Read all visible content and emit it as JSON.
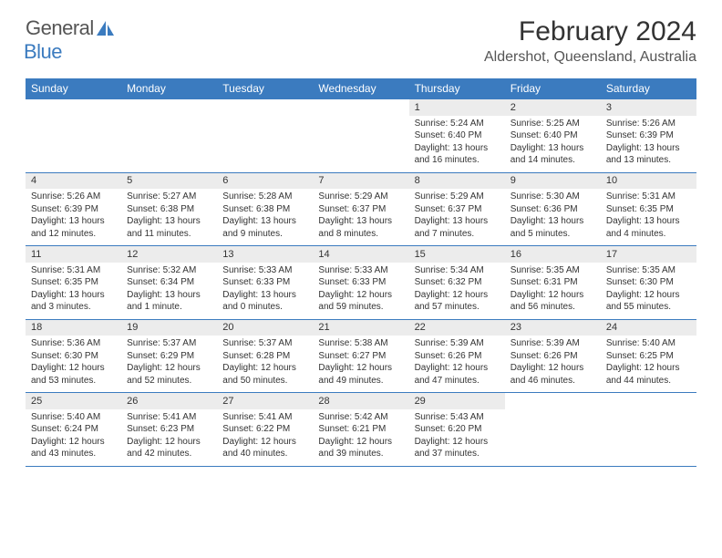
{
  "logo": {
    "general": "General",
    "blue": "Blue",
    "icon_color": "#3b7bbf"
  },
  "header": {
    "title": "February 2024",
    "location": "Aldershot, Queensland, Australia"
  },
  "colors": {
    "header_bg": "#3b7bbf",
    "header_text": "#ffffff",
    "daynum_bg": "#ececec",
    "border": "#3b7bbf",
    "body_text": "#333333"
  },
  "day_names": [
    "Sunday",
    "Monday",
    "Tuesday",
    "Wednesday",
    "Thursday",
    "Friday",
    "Saturday"
  ],
  "weeks": [
    [
      null,
      null,
      null,
      null,
      {
        "n": "1",
        "sr": "Sunrise: 5:24 AM",
        "ss": "Sunset: 6:40 PM",
        "dl": "Daylight: 13 hours and 16 minutes."
      },
      {
        "n": "2",
        "sr": "Sunrise: 5:25 AM",
        "ss": "Sunset: 6:40 PM",
        "dl": "Daylight: 13 hours and 14 minutes."
      },
      {
        "n": "3",
        "sr": "Sunrise: 5:26 AM",
        "ss": "Sunset: 6:39 PM",
        "dl": "Daylight: 13 hours and 13 minutes."
      }
    ],
    [
      {
        "n": "4",
        "sr": "Sunrise: 5:26 AM",
        "ss": "Sunset: 6:39 PM",
        "dl": "Daylight: 13 hours and 12 minutes."
      },
      {
        "n": "5",
        "sr": "Sunrise: 5:27 AM",
        "ss": "Sunset: 6:38 PM",
        "dl": "Daylight: 13 hours and 11 minutes."
      },
      {
        "n": "6",
        "sr": "Sunrise: 5:28 AM",
        "ss": "Sunset: 6:38 PM",
        "dl": "Daylight: 13 hours and 9 minutes."
      },
      {
        "n": "7",
        "sr": "Sunrise: 5:29 AM",
        "ss": "Sunset: 6:37 PM",
        "dl": "Daylight: 13 hours and 8 minutes."
      },
      {
        "n": "8",
        "sr": "Sunrise: 5:29 AM",
        "ss": "Sunset: 6:37 PM",
        "dl": "Daylight: 13 hours and 7 minutes."
      },
      {
        "n": "9",
        "sr": "Sunrise: 5:30 AM",
        "ss": "Sunset: 6:36 PM",
        "dl": "Daylight: 13 hours and 5 minutes."
      },
      {
        "n": "10",
        "sr": "Sunrise: 5:31 AM",
        "ss": "Sunset: 6:35 PM",
        "dl": "Daylight: 13 hours and 4 minutes."
      }
    ],
    [
      {
        "n": "11",
        "sr": "Sunrise: 5:31 AM",
        "ss": "Sunset: 6:35 PM",
        "dl": "Daylight: 13 hours and 3 minutes."
      },
      {
        "n": "12",
        "sr": "Sunrise: 5:32 AM",
        "ss": "Sunset: 6:34 PM",
        "dl": "Daylight: 13 hours and 1 minute."
      },
      {
        "n": "13",
        "sr": "Sunrise: 5:33 AM",
        "ss": "Sunset: 6:33 PM",
        "dl": "Daylight: 13 hours and 0 minutes."
      },
      {
        "n": "14",
        "sr": "Sunrise: 5:33 AM",
        "ss": "Sunset: 6:33 PM",
        "dl": "Daylight: 12 hours and 59 minutes."
      },
      {
        "n": "15",
        "sr": "Sunrise: 5:34 AM",
        "ss": "Sunset: 6:32 PM",
        "dl": "Daylight: 12 hours and 57 minutes."
      },
      {
        "n": "16",
        "sr": "Sunrise: 5:35 AM",
        "ss": "Sunset: 6:31 PM",
        "dl": "Daylight: 12 hours and 56 minutes."
      },
      {
        "n": "17",
        "sr": "Sunrise: 5:35 AM",
        "ss": "Sunset: 6:30 PM",
        "dl": "Daylight: 12 hours and 55 minutes."
      }
    ],
    [
      {
        "n": "18",
        "sr": "Sunrise: 5:36 AM",
        "ss": "Sunset: 6:30 PM",
        "dl": "Daylight: 12 hours and 53 minutes."
      },
      {
        "n": "19",
        "sr": "Sunrise: 5:37 AM",
        "ss": "Sunset: 6:29 PM",
        "dl": "Daylight: 12 hours and 52 minutes."
      },
      {
        "n": "20",
        "sr": "Sunrise: 5:37 AM",
        "ss": "Sunset: 6:28 PM",
        "dl": "Daylight: 12 hours and 50 minutes."
      },
      {
        "n": "21",
        "sr": "Sunrise: 5:38 AM",
        "ss": "Sunset: 6:27 PM",
        "dl": "Daylight: 12 hours and 49 minutes."
      },
      {
        "n": "22",
        "sr": "Sunrise: 5:39 AM",
        "ss": "Sunset: 6:26 PM",
        "dl": "Daylight: 12 hours and 47 minutes."
      },
      {
        "n": "23",
        "sr": "Sunrise: 5:39 AM",
        "ss": "Sunset: 6:26 PM",
        "dl": "Daylight: 12 hours and 46 minutes."
      },
      {
        "n": "24",
        "sr": "Sunrise: 5:40 AM",
        "ss": "Sunset: 6:25 PM",
        "dl": "Daylight: 12 hours and 44 minutes."
      }
    ],
    [
      {
        "n": "25",
        "sr": "Sunrise: 5:40 AM",
        "ss": "Sunset: 6:24 PM",
        "dl": "Daylight: 12 hours and 43 minutes."
      },
      {
        "n": "26",
        "sr": "Sunrise: 5:41 AM",
        "ss": "Sunset: 6:23 PM",
        "dl": "Daylight: 12 hours and 42 minutes."
      },
      {
        "n": "27",
        "sr": "Sunrise: 5:41 AM",
        "ss": "Sunset: 6:22 PM",
        "dl": "Daylight: 12 hours and 40 minutes."
      },
      {
        "n": "28",
        "sr": "Sunrise: 5:42 AM",
        "ss": "Sunset: 6:21 PM",
        "dl": "Daylight: 12 hours and 39 minutes."
      },
      {
        "n": "29",
        "sr": "Sunrise: 5:43 AM",
        "ss": "Sunset: 6:20 PM",
        "dl": "Daylight: 12 hours and 37 minutes."
      },
      null,
      null
    ]
  ]
}
